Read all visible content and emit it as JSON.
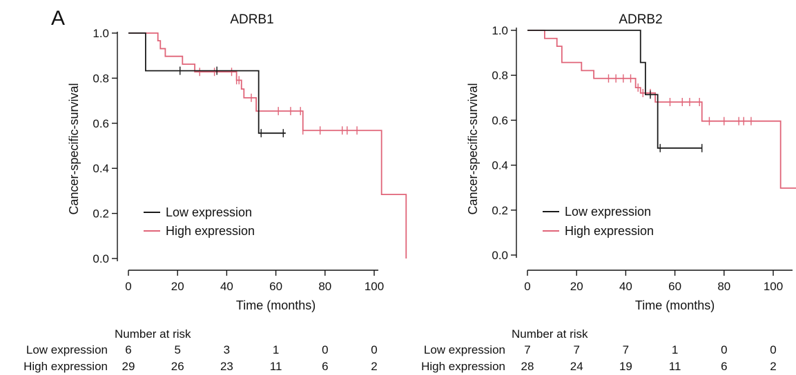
{
  "figure": {
    "panel_label": "A",
    "risk_header": "Number at risk"
  },
  "colors": {
    "low": "#1a1a1a",
    "high": "#e06478",
    "axis": "#111111"
  },
  "chart_data": [
    {
      "type": "line",
      "title": "ADRB1",
      "xlabel": "Time (months)",
      "ylabel": "Cancer-specific-survival",
      "xlim": [
        0,
        113
      ],
      "ylim": [
        0,
        1.0
      ],
      "xticks": [
        0,
        20,
        40,
        60,
        80,
        100
      ],
      "yticks": [
        0.0,
        0.2,
        0.4,
        0.6,
        0.8,
        1.0
      ],
      "ytick_labels": [
        "0.0",
        "0.2",
        "0.4",
        "0.6",
        "0.8",
        "1.0"
      ],
      "legend": {
        "position": "lower-left",
        "entries": [
          "Low expression",
          "High expression"
        ]
      },
      "series": [
        {
          "name": "Low expression",
          "step_times": [
            0,
            7,
            53,
            64
          ],
          "step_values": [
            1.0,
            0.833,
            0.556,
            0.556
          ],
          "censor_times": [
            21,
            36,
            54,
            63
          ]
        },
        {
          "name": "High expression",
          "step_times": [
            0,
            12,
            13,
            15,
            22,
            27,
            37,
            44,
            46,
            47,
            52,
            71,
            103,
            113
          ],
          "step_values": [
            1.0,
            0.966,
            0.931,
            0.897,
            0.862,
            0.828,
            0.828,
            0.791,
            0.752,
            0.713,
            0.654,
            0.568,
            0.284,
            0.0
          ],
          "censor_times": [
            29,
            35,
            42,
            44,
            45,
            50,
            61,
            66,
            70,
            71,
            78,
            87,
            89,
            93
          ]
        }
      ],
      "risk_table": {
        "rows": [
          {
            "label": "Low expression",
            "values": [
              "6",
              "5",
              "3",
              "1",
              "0",
              "0"
            ]
          },
          {
            "label": "High expression",
            "values": [
              "29",
              "26",
              "23",
              "11",
              "6",
              "2"
            ]
          }
        ]
      }
    },
    {
      "type": "line",
      "title": "ADRB2",
      "xlabel": "Time (months)",
      "ylabel": "Cancer-specific-survival",
      "xlim": [
        0,
        113
      ],
      "ylim": [
        0,
        1.0
      ],
      "xticks": [
        0,
        20,
        40,
        60,
        80,
        100
      ],
      "yticks": [
        0.0,
        0.2,
        0.4,
        0.6,
        0.8,
        1.0
      ],
      "ytick_labels": [
        "0.0",
        "0.2",
        "0.4",
        "0.6",
        "0.8",
        "1.0"
      ],
      "legend": {
        "position": "lower-left",
        "entries": [
          "Low expression",
          "High expression"
        ]
      },
      "series": [
        {
          "name": "Low expression",
          "step_times": [
            0,
            46,
            48,
            53,
            71
          ],
          "step_values": [
            1.0,
            0.857,
            0.714,
            0.476,
            0.476
          ],
          "censor_times": [
            50,
            54,
            71
          ]
        },
        {
          "name": "High expression",
          "step_times": [
            0,
            7,
            12,
            14,
            22,
            27,
            44,
            46,
            52,
            71,
            103,
            113
          ],
          "step_values": [
            1.0,
            0.964,
            0.929,
            0.857,
            0.821,
            0.786,
            0.745,
            0.721,
            0.681,
            0.596,
            0.298,
            0.0
          ],
          "censor_times": [
            33,
            36,
            39,
            42,
            45,
            47,
            50,
            58,
            63,
            66,
            70,
            74,
            80,
            86,
            88,
            91
          ]
        }
      ],
      "risk_table": {
        "rows": [
          {
            "label": "Low expression",
            "values": [
              "7",
              "7",
              "7",
              "1",
              "0",
              "0"
            ]
          },
          {
            "label": "High expression",
            "values": [
              "28",
              "24",
              "19",
              "11",
              "6",
              "2"
            ]
          }
        ]
      }
    }
  ]
}
